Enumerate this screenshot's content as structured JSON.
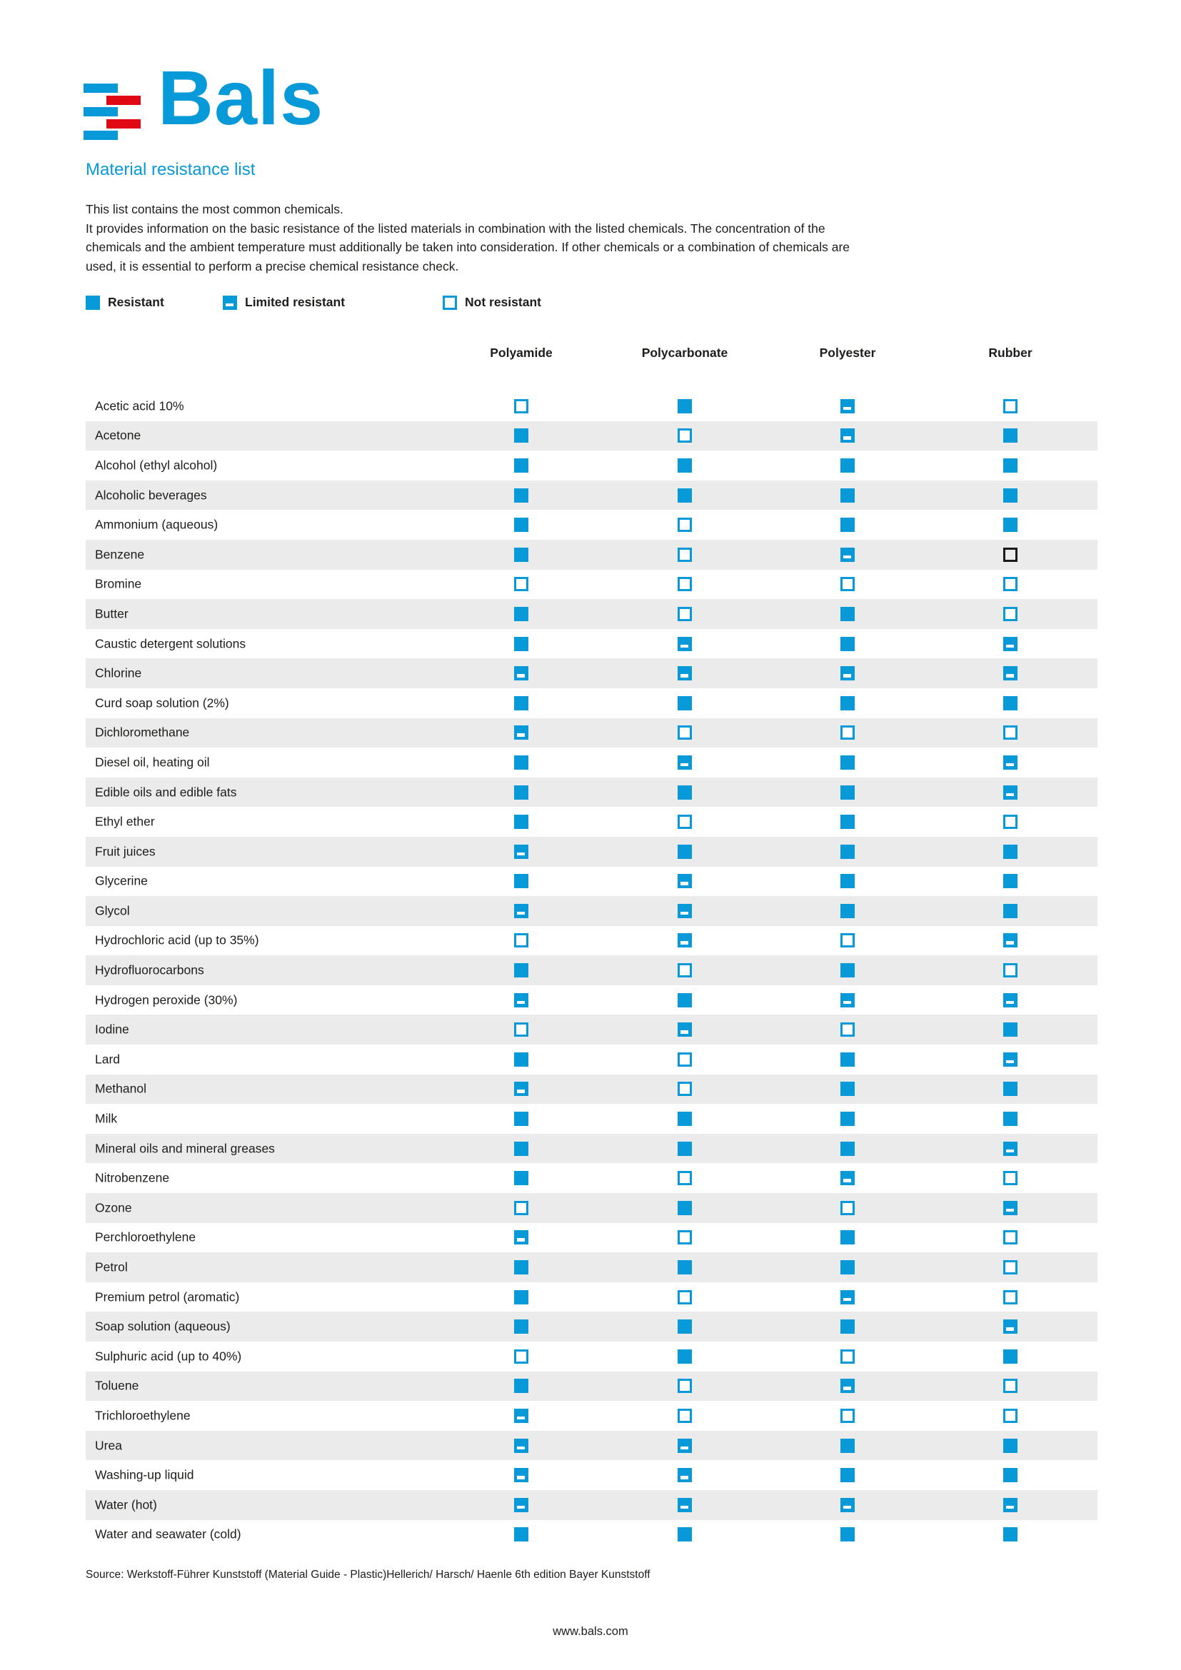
{
  "colors": {
    "brand_blue": "#0899d8",
    "brand_red": "#e00814",
    "row_alt": "#ebebeb",
    "text": "#1d1d1b",
    "benzene_rubber_black": "#1a1a1a"
  },
  "logo": {
    "wordmark": "Bals"
  },
  "header": {
    "title": "Material resistance list",
    "intro_lines": [
      "This list contains the most common chemicals.",
      "It provides information on the basic resistance of the listed materials in combination with the listed chemicals. The concentration of the",
      "chemicals and the ambient temperature must additionally be taken into consideration. If other chemicals or a combination of chemicals are",
      "used, it is essential to perform a precise chemical resistance check."
    ]
  },
  "legend": [
    {
      "code": "R",
      "label": "Resistant"
    },
    {
      "code": "L",
      "label": "Limited resistant"
    },
    {
      "code": "N",
      "label": "Not resistant"
    }
  ],
  "table": {
    "columns": [
      "Polyamide",
      "Polycarbonate",
      "Polyester",
      "Rubber"
    ],
    "symbol_meanings": {
      "R": "resistant",
      "L": "limited-resistant",
      "N": "not-resistant",
      "NB": "not-resistant-black"
    },
    "rows": [
      {
        "chemical": "Acetic acid 10%",
        "values": [
          "N",
          "R",
          "L",
          "N"
        ]
      },
      {
        "chemical": "Acetone",
        "values": [
          "R",
          "N",
          "L",
          "R"
        ]
      },
      {
        "chemical": "Alcohol (ethyl alcohol)",
        "values": [
          "R",
          "R",
          "R",
          "R"
        ]
      },
      {
        "chemical": "Alcoholic beverages",
        "values": [
          "R",
          "R",
          "R",
          "R"
        ]
      },
      {
        "chemical": "Ammonium (aqueous)",
        "values": [
          "R",
          "N",
          "R",
          "R"
        ]
      },
      {
        "chemical": "Benzene",
        "values": [
          "R",
          "N",
          "L",
          "NB"
        ]
      },
      {
        "chemical": "Bromine",
        "values": [
          "N",
          "N",
          "N",
          "N"
        ]
      },
      {
        "chemical": "Butter",
        "values": [
          "R",
          "N",
          "R",
          "N"
        ]
      },
      {
        "chemical": "Caustic detergent solutions",
        "values": [
          "R",
          "L",
          "R",
          "L"
        ]
      },
      {
        "chemical": "Chlorine",
        "values": [
          "L",
          "L",
          "L",
          "L"
        ]
      },
      {
        "chemical": "Curd soap solution (2%)",
        "values": [
          "R",
          "R",
          "R",
          "R"
        ]
      },
      {
        "chemical": "Dichloromethane",
        "values": [
          "L",
          "N",
          "N",
          "N"
        ]
      },
      {
        "chemical": "Diesel oil, heating oil",
        "values": [
          "R",
          "L",
          "R",
          "L"
        ]
      },
      {
        "chemical": "Edible oils and edible fats",
        "values": [
          "R",
          "R",
          "R",
          "L"
        ]
      },
      {
        "chemical": "Ethyl ether",
        "values": [
          "R",
          "N",
          "R",
          "N"
        ]
      },
      {
        "chemical": "Fruit juices",
        "values": [
          "L",
          "R",
          "R",
          "R"
        ]
      },
      {
        "chemical": "Glycerine",
        "values": [
          "R",
          "L",
          "R",
          "R"
        ]
      },
      {
        "chemical": "Glycol",
        "values": [
          "L",
          "L",
          "R",
          "R"
        ]
      },
      {
        "chemical": "Hydrochloric acid (up to 35%)",
        "values": [
          "N",
          "L",
          "N",
          "L"
        ]
      },
      {
        "chemical": "Hydrofluorocarbons",
        "values": [
          "R",
          "N",
          "R",
          "N"
        ]
      },
      {
        "chemical": "Hydrogen peroxide (30%)",
        "values": [
          "L",
          "R",
          "L",
          "L"
        ]
      },
      {
        "chemical": "Iodine",
        "values": [
          "N",
          "L",
          "N",
          "R"
        ]
      },
      {
        "chemical": "Lard",
        "values": [
          "R",
          "N",
          "R",
          "L"
        ]
      },
      {
        "chemical": "Methanol",
        "values": [
          "L",
          "N",
          "R",
          "R"
        ]
      },
      {
        "chemical": "Milk",
        "values": [
          "R",
          "R",
          "R",
          "R"
        ]
      },
      {
        "chemical": "Mineral oils and mineral greases",
        "values": [
          "R",
          "R",
          "R",
          "L"
        ]
      },
      {
        "chemical": "Nitrobenzene",
        "values": [
          "R",
          "N",
          "L",
          "N"
        ]
      },
      {
        "chemical": "Ozone",
        "values": [
          "N",
          "R",
          "N",
          "L"
        ]
      },
      {
        "chemical": "Perchloroethylene",
        "values": [
          "L",
          "N",
          "R",
          "N"
        ]
      },
      {
        "chemical": "Petrol",
        "values": [
          "R",
          "R",
          "R",
          "N"
        ]
      },
      {
        "chemical": "Premium petrol (aromatic)",
        "values": [
          "R",
          "N",
          "L",
          "N"
        ]
      },
      {
        "chemical": "Soap solution (aqueous)",
        "values": [
          "R",
          "R",
          "R",
          "L"
        ]
      },
      {
        "chemical": "Sulphuric acid (up to 40%)",
        "values": [
          "N",
          "R",
          "N",
          "R"
        ]
      },
      {
        "chemical": "Toluene",
        "values": [
          "R",
          "N",
          "L",
          "N"
        ]
      },
      {
        "chemical": "Trichloroethylene",
        "values": [
          "L",
          "N",
          "N",
          "N"
        ]
      },
      {
        "chemical": "Urea",
        "values": [
          "L",
          "L",
          "R",
          "R"
        ]
      },
      {
        "chemical": "Washing-up liquid",
        "values": [
          "L",
          "L",
          "R",
          "R"
        ]
      },
      {
        "chemical": "Water (hot)",
        "values": [
          "L",
          "L",
          "L",
          "L"
        ]
      },
      {
        "chemical": "Water and seawater (cold)",
        "values": [
          "R",
          "R",
          "R",
          "R"
        ]
      }
    ]
  },
  "footer": {
    "source": "Source: Werkstoff-Führer Kunststoff (Material Guide - Plastic)Hellerich/ Harsch/ Haenle 6th edition Bayer Kunststoff",
    "website": "www.bals.com"
  }
}
